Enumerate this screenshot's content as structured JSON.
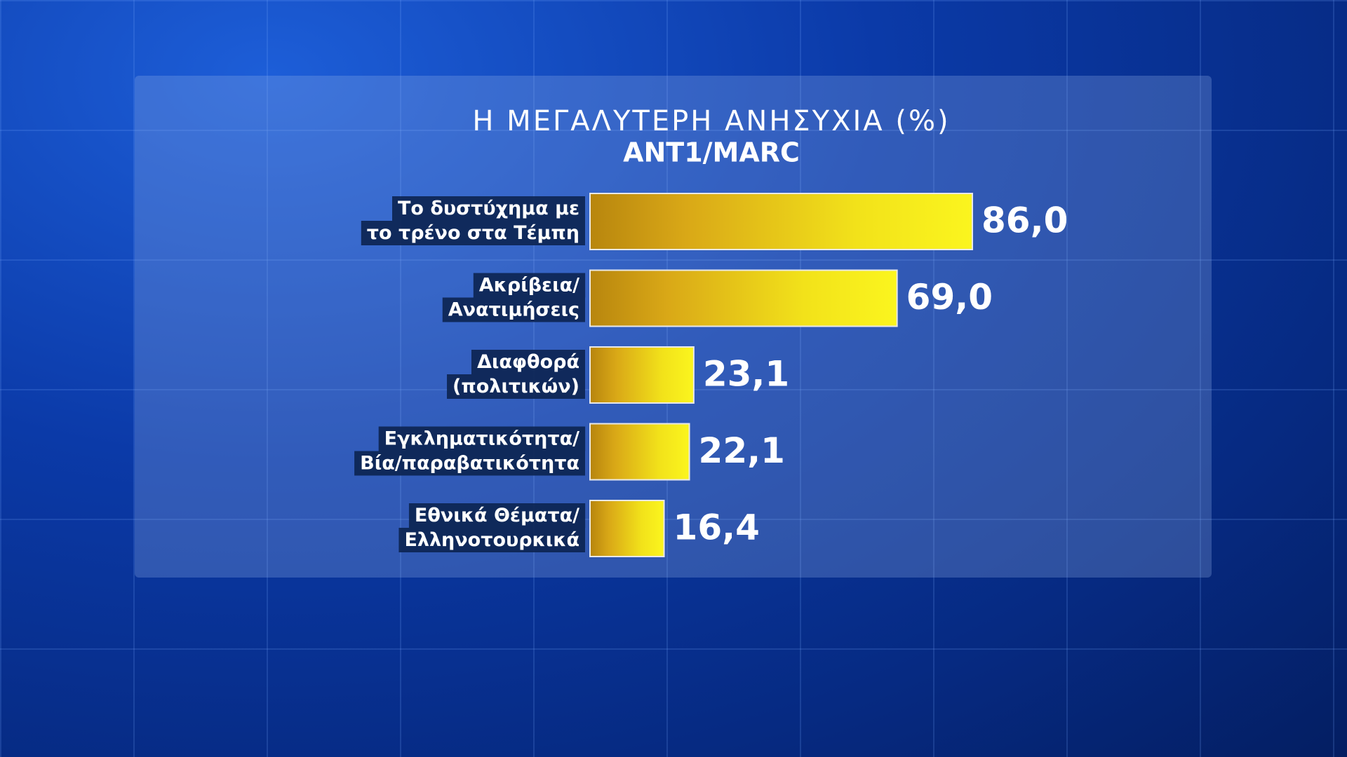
{
  "chart_data": {
    "type": "hbar",
    "title": "Η ΜΕΓΑΛΥΤΕΡΗ ΑΝΗΣΥΧΙΑ (%)",
    "subtitle": "ANT1/MARC",
    "categories": [
      [
        "Το δυστύχημα με",
        "το τρένο στα Τέμπη"
      ],
      [
        "Ακρίβεια/",
        "Ανατιμήσεις"
      ],
      [
        "Διαφθορά",
        "(πολιτικών)"
      ],
      [
        "Εγκληματικότητα/",
        "Βία/παραβατικότητα"
      ],
      [
        "Εθνικά Θέματα/",
        "Ελληνοτουρκικά"
      ]
    ],
    "values": [
      86.0,
      69.0,
      23.1,
      22.1,
      16.4
    ],
    "value_labels": [
      "86,0",
      "69,0",
      "23,1",
      "22,1",
      "16,4"
    ],
    "color": "#f5ec10"
  }
}
